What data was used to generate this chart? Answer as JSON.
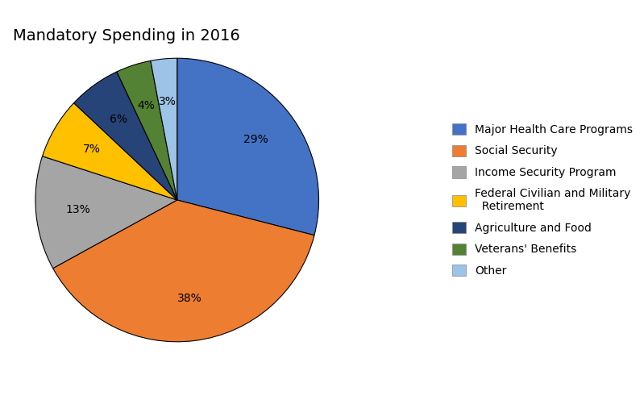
{
  "title": "Mandatory Spending in 2016",
  "slices": [
    {
      "label": "Major Health Care Programs",
      "pct": 29,
      "color": "#4472C4"
    },
    {
      "label": "Social Security",
      "pct": 38,
      "color": "#ED7D31"
    },
    {
      "label": "Income Security Program",
      "pct": 13,
      "color": "#A5A5A5"
    },
    {
      "label": "Federal Civilian and Military\nRetirement",
      "pct": 7,
      "color": "#FFC000"
    },
    {
      "label": "Agriculture and Food",
      "pct": 6,
      "color": "#264478"
    },
    {
      "label": "Veterans' Benefits",
      "pct": 4,
      "color": "#548235"
    },
    {
      "label": "Other",
      "pct": 3,
      "color": "#9DC3E6"
    }
  ],
  "legend_labels": [
    "Major Health Care Programs",
    "Social Security",
    "Income Security Program",
    "Federal Civilian and Military\n  Retirement",
    "Agriculture and Food",
    "Veterans' Benefits",
    "Other"
  ],
  "title_fontsize": 14,
  "label_fontsize": 10,
  "legend_fontsize": 10,
  "background_color": "#FFFFFF"
}
